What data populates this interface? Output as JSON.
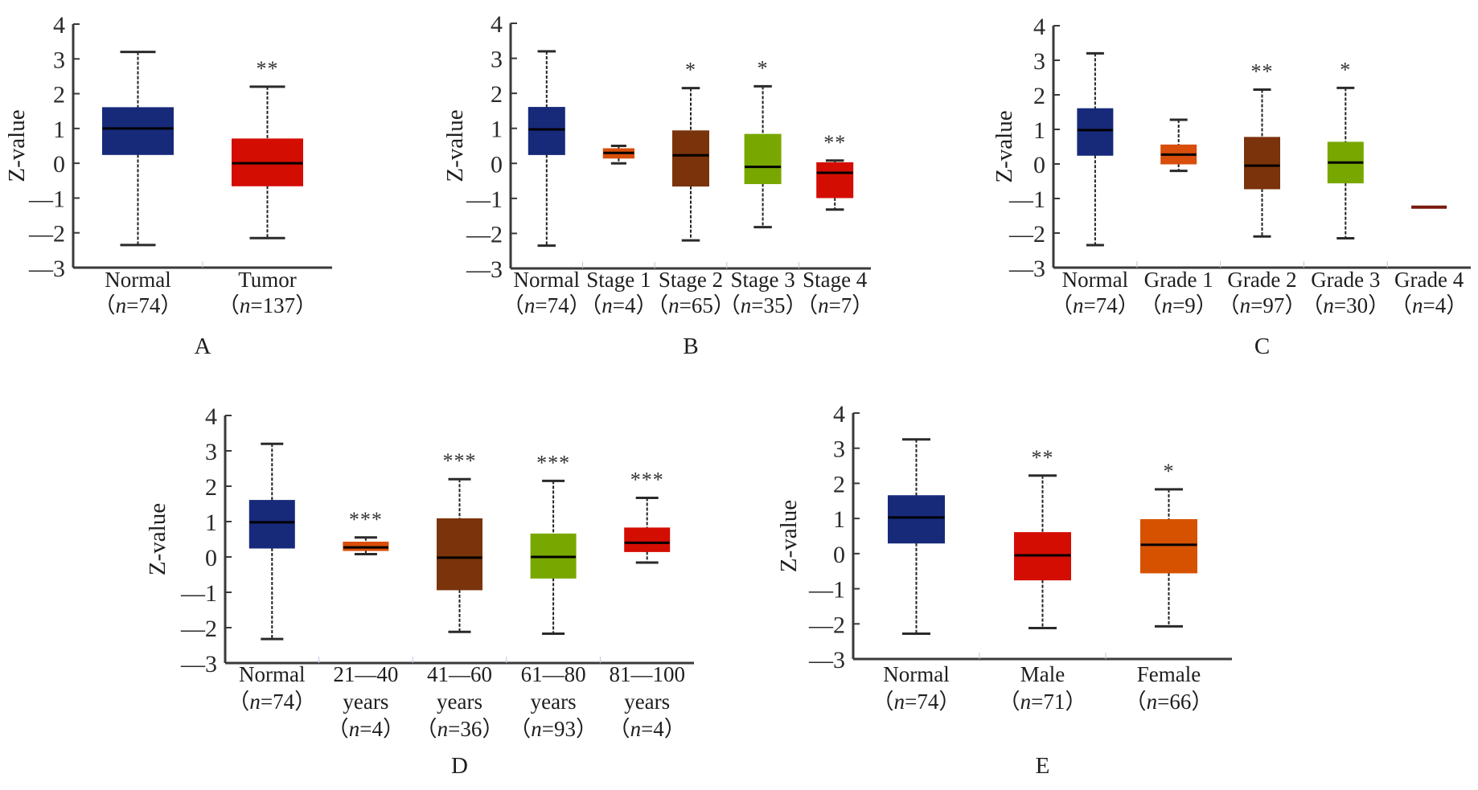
{
  "figure": {
    "panels": [
      "A",
      "B",
      "C",
      "D",
      "E"
    ]
  },
  "chart_data": [
    {
      "panel": "A",
      "type": "box",
      "ylabel": "Z-value",
      "ylim": [
        -3,
        4
      ],
      "yticks": [
        "4",
        "3",
        "2",
        "1",
        "0",
        "-1",
        "-2",
        "-3"
      ],
      "categories": [
        {
          "label": "Normal",
          "n": "(n=74)",
          "color": "#172a7a",
          "min": -2.35,
          "q1": 0.25,
          "median": 1.0,
          "q3": 1.6,
          "max": 3.2,
          "sig": ""
        },
        {
          "label": "Tumor",
          "n": "(n=137)",
          "color": "#d40d02",
          "min": -2.15,
          "q1": -0.65,
          "median": 0.0,
          "q3": 0.7,
          "max": 2.2,
          "sig": "**"
        }
      ]
    },
    {
      "panel": "B",
      "type": "box",
      "ylabel": "Z-value",
      "ylim": [
        -3,
        4
      ],
      "yticks": [
        "4",
        "3",
        "2",
        "1",
        "0",
        "-1",
        "-2",
        "-3"
      ],
      "categories": [
        {
          "label": "Normal",
          "n": "(n=74)",
          "color": "#172a7a",
          "min": -2.35,
          "q1": 0.25,
          "median": 0.97,
          "q3": 1.6,
          "max": 3.2,
          "sig": ""
        },
        {
          "label": "Stage 1",
          "n": "(n=4)",
          "color": "#d84e0a",
          "min": 0.0,
          "q1": 0.15,
          "median": 0.3,
          "q3": 0.42,
          "max": 0.5,
          "sig": ""
        },
        {
          "label": "Stage 2",
          "n": "(n=65)",
          "color": "#7a330b",
          "min": -2.2,
          "q1": -0.65,
          "median": 0.23,
          "q3": 0.93,
          "max": 2.15,
          "sig": "*"
        },
        {
          "label": "Stage 3",
          "n": "(n=35)",
          "color": "#78a800",
          "min": -1.82,
          "q1": -0.58,
          "median": -0.1,
          "q3": 0.83,
          "max": 2.2,
          "sig": "*"
        },
        {
          "label": "Stage 4",
          "n": "(n=7)",
          "color": "#d40d02",
          "min": -1.32,
          "q1": -0.98,
          "median": -0.27,
          "q3": 0.02,
          "max": 0.08,
          "sig": "**"
        }
      ]
    },
    {
      "panel": "C",
      "type": "box",
      "ylabel": "Z-value",
      "ylim": [
        -3,
        4
      ],
      "yticks": [
        "4",
        "3",
        "2",
        "1",
        "0",
        "-1",
        "-2",
        "-3"
      ],
      "categories": [
        {
          "label": "Normal",
          "n": "(n=74)",
          "color": "#172a7a",
          "min": -2.35,
          "q1": 0.25,
          "median": 0.98,
          "q3": 1.6,
          "max": 3.2,
          "sig": ""
        },
        {
          "label": "Grade 1",
          "n": "(n=9)",
          "color": "#d84e0a",
          "min": -0.2,
          "q1": 0.0,
          "median": 0.27,
          "q3": 0.55,
          "max": 1.28,
          "sig": ""
        },
        {
          "label": "Grade 2",
          "n": "(n=97)",
          "color": "#7a330b",
          "min": -2.1,
          "q1": -0.72,
          "median": -0.05,
          "q3": 0.77,
          "max": 2.15,
          "sig": "**"
        },
        {
          "label": "Grade 3",
          "n": "(n=30)",
          "color": "#78a800",
          "min": -2.15,
          "q1": -0.55,
          "median": 0.04,
          "q3": 0.63,
          "max": 2.2,
          "sig": "*"
        },
        {
          "label": "Grade 4",
          "n": "(n=4)",
          "color": "#7a1a10",
          "min": -1.25,
          "q1": -1.25,
          "median": -1.25,
          "q3": -1.25,
          "max": -1.25,
          "sig": ""
        }
      ]
    },
    {
      "panel": "D",
      "type": "box",
      "ylabel": "Z-value",
      "ylim": [
        -3,
        4
      ],
      "yticks": [
        "4",
        "3",
        "2",
        "1",
        "0",
        "-1",
        "-2",
        "-3"
      ],
      "categories": [
        {
          "label": "Normal",
          "label2": "",
          "n": "(n=74)",
          "color": "#172a7a",
          "min": -2.32,
          "q1": 0.25,
          "median": 0.98,
          "q3": 1.6,
          "max": 3.2,
          "sig": ""
        },
        {
          "label": "21—40",
          "label2": "years",
          "n": "(n=4)",
          "color": "#d84e0a",
          "min": 0.08,
          "q1": 0.18,
          "median": 0.27,
          "q3": 0.42,
          "max": 0.55,
          "sig": "***"
        },
        {
          "label": "41—60",
          "label2": "years",
          "n": "(n=36)",
          "color": "#7a330b",
          "min": -2.12,
          "q1": -0.93,
          "median": -0.02,
          "q3": 1.08,
          "max": 2.2,
          "sig": "***"
        },
        {
          "label": "61—80",
          "label2": "years",
          "n": "(n=93)",
          "color": "#78a800",
          "min": -2.17,
          "q1": -0.6,
          "median": 0.0,
          "q3": 0.65,
          "max": 2.15,
          "sig": "***"
        },
        {
          "label": "81—100",
          "label2": "years",
          "n": "(n=4)",
          "color": "#d40d02",
          "min": -0.16,
          "q1": 0.15,
          "median": 0.4,
          "q3": 0.82,
          "max": 1.67,
          "sig": "***"
        }
      ]
    },
    {
      "panel": "E",
      "type": "box",
      "ylabel": "Z-value",
      "ylim": [
        -3,
        4
      ],
      "yticks": [
        "4",
        "3",
        "2",
        "1",
        "0",
        "-1",
        "-2",
        "-3"
      ],
      "categories": [
        {
          "label": "Normal",
          "n": "(n=74)",
          "color": "#172a7a",
          "min": -2.28,
          "q1": 0.3,
          "median": 1.03,
          "q3": 1.65,
          "max": 3.25,
          "sig": ""
        },
        {
          "label": "Male",
          "n": "(n=71)",
          "color": "#d40d02",
          "min": -2.12,
          "q1": -0.75,
          "median": -0.05,
          "q3": 0.6,
          "max": 2.22,
          "sig": "**"
        },
        {
          "label": "Female",
          "n": "(n=66)",
          "color": "#d65200",
          "min": -2.07,
          "q1": -0.55,
          "median": 0.25,
          "q3": 0.97,
          "max": 1.83,
          "sig": "*"
        }
      ]
    }
  ]
}
